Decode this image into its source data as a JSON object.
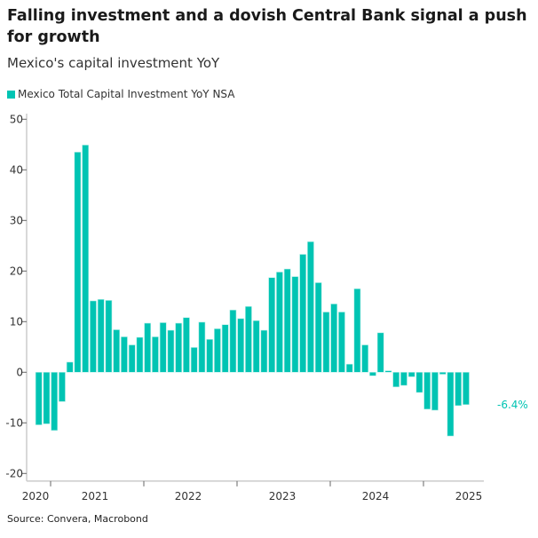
{
  "title": "Falling investment and a dovish Central Bank signal a push for growth",
  "subtitle": "Mexico's capital investment YoY",
  "source": "Source: Convera, Macrobond",
  "colors": {
    "bar": "#00C4B3",
    "label": "#00C4B3"
  },
  "chart_data": {
    "type": "bar",
    "title": "Falling investment and a dovish Central Bank signal a push for growth",
    "subtitle": "Mexico's capital investment YoY",
    "legend": {
      "position": "top-left"
    },
    "grid": false,
    "x_start": "2020-11",
    "frequency": "monthly",
    "x_tick_labels": [
      "2020",
      "2021",
      "2022",
      "2023",
      "2024",
      "2025"
    ],
    "y_ticks": [
      -20,
      -10,
      0,
      10,
      20,
      30,
      40,
      50
    ],
    "ylim": [
      -21.5,
      51
    ],
    "series": [
      {
        "name": "Mexico Total Capital Investment YoY NSA",
        "values": [
          -10.4,
          -10.2,
          -11.5,
          -5.8,
          2.0,
          43.5,
          44.9,
          14.1,
          14.4,
          14.2,
          8.4,
          7.0,
          5.4,
          6.9,
          9.7,
          7.0,
          9.8,
          8.3,
          9.7,
          10.8,
          4.9,
          9.9,
          6.5,
          8.6,
          9.4,
          12.3,
          10.6,
          13.0,
          10.2,
          8.3,
          18.7,
          19.8,
          20.4,
          18.9,
          23.3,
          25.8,
          17.7,
          11.9,
          13.5,
          11.9,
          1.6,
          16.5,
          5.4,
          -0.7,
          7.8,
          0.3,
          -2.9,
          -2.6,
          -0.9,
          -4.0,
          -7.3,
          -7.5,
          -0.4,
          -12.6,
          -6.6,
          -6.4
        ]
      }
    ],
    "last_value_label": "-6.4%"
  }
}
